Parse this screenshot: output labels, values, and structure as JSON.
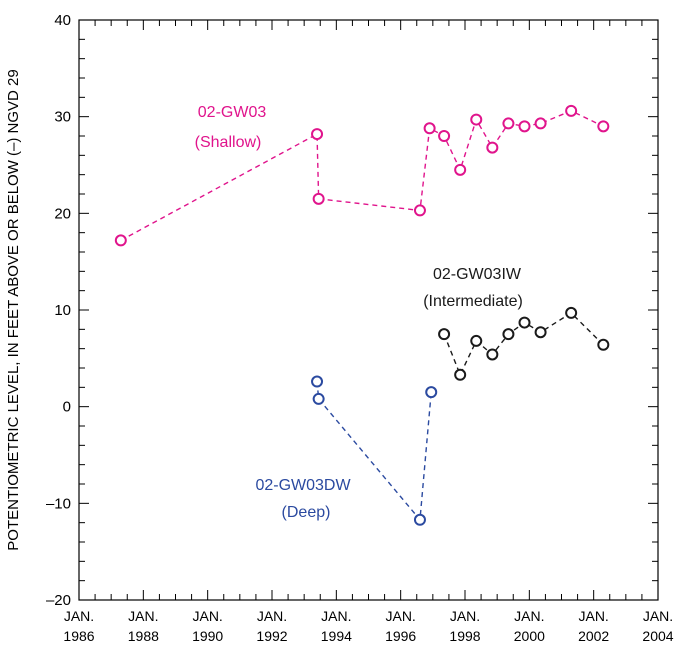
{
  "chart_data": {
    "type": "line",
    "ylabel": "POTENTIOMETRIC LEVEL, IN FEET ABOVE OR BELOW (–) NGVD 29",
    "ylim": [
      -20,
      40
    ],
    "y_ticks": [
      -20,
      -10,
      0,
      10,
      20,
      30,
      40
    ],
    "y_tick_labels": [
      "–20",
      "–10",
      "0",
      "10",
      "20",
      "30",
      "40"
    ],
    "xlim": [
      1986.0,
      2004.0
    ],
    "x_major_ticks": [
      1986,
      1988,
      1990,
      1992,
      1994,
      1996,
      1998,
      2000,
      2002,
      2004
    ],
    "x_tick_labels": [
      {
        "month": "JAN.",
        "year": "1986"
      },
      {
        "month": "JAN.",
        "year": "1988"
      },
      {
        "month": "JAN.",
        "year": "1990"
      },
      {
        "month": "JAN.",
        "year": "1992"
      },
      {
        "month": "JAN.",
        "year": "1994"
      },
      {
        "month": "JAN.",
        "year": "1996"
      },
      {
        "month": "JAN.",
        "year": "1998"
      },
      {
        "month": "JAN.",
        "year": "2000"
      },
      {
        "month": "JAN.",
        "year": "2002"
      },
      {
        "month": "JAN.",
        "year": "2004"
      }
    ],
    "grid": false,
    "line_style": "dashed",
    "series": [
      {
        "name": "02-GW03",
        "label_line1": "02-GW03",
        "label_line2": "(Shallow)",
        "color": "#e0148c",
        "points": [
          {
            "x": 1987.3,
            "y": 17.2
          },
          {
            "x": 1993.4,
            "y": 28.2
          },
          {
            "x": 1993.45,
            "y": 21.5
          },
          {
            "x": 1996.6,
            "y": 20.3
          },
          {
            "x": 1996.9,
            "y": 28.8
          },
          {
            "x": 1997.35,
            "y": 28.0
          },
          {
            "x": 1997.85,
            "y": 24.5
          },
          {
            "x": 1998.35,
            "y": 29.7
          },
          {
            "x": 1998.85,
            "y": 26.8
          },
          {
            "x": 1999.35,
            "y": 29.3
          },
          {
            "x": 1999.85,
            "y": 29.0
          },
          {
            "x": 2000.35,
            "y": 29.3
          },
          {
            "x": 2001.3,
            "y": 30.6
          },
          {
            "x": 2002.3,
            "y": 29.0
          }
        ]
      },
      {
        "name": "02-GW03IW",
        "label_line1": "02-GW03IW",
        "label_line2": "(Intermediate)",
        "color": "#1a1a1a",
        "points": [
          {
            "x": 1997.35,
            "y": 7.5
          },
          {
            "x": 1997.85,
            "y": 3.3
          },
          {
            "x": 1998.35,
            "y": 6.8
          },
          {
            "x": 1998.85,
            "y": 5.4
          },
          {
            "x": 1999.35,
            "y": 7.5
          },
          {
            "x": 1999.85,
            "y": 8.7
          },
          {
            "x": 2000.35,
            "y": 7.7
          },
          {
            "x": 2001.3,
            "y": 9.7
          },
          {
            "x": 2002.3,
            "y": 6.4
          }
        ]
      },
      {
        "name": "02-GW03DW",
        "label_line1": "02-GW03DW",
        "label_line2": "(Deep)",
        "color": "#2b4aa0",
        "points": [
          {
            "x": 1993.4,
            "y": 2.6
          },
          {
            "x": 1993.45,
            "y": 0.8
          },
          {
            "x": 1996.6,
            "y": -11.7
          },
          {
            "x": 1996.95,
            "y": 1.5
          }
        ]
      }
    ]
  }
}
